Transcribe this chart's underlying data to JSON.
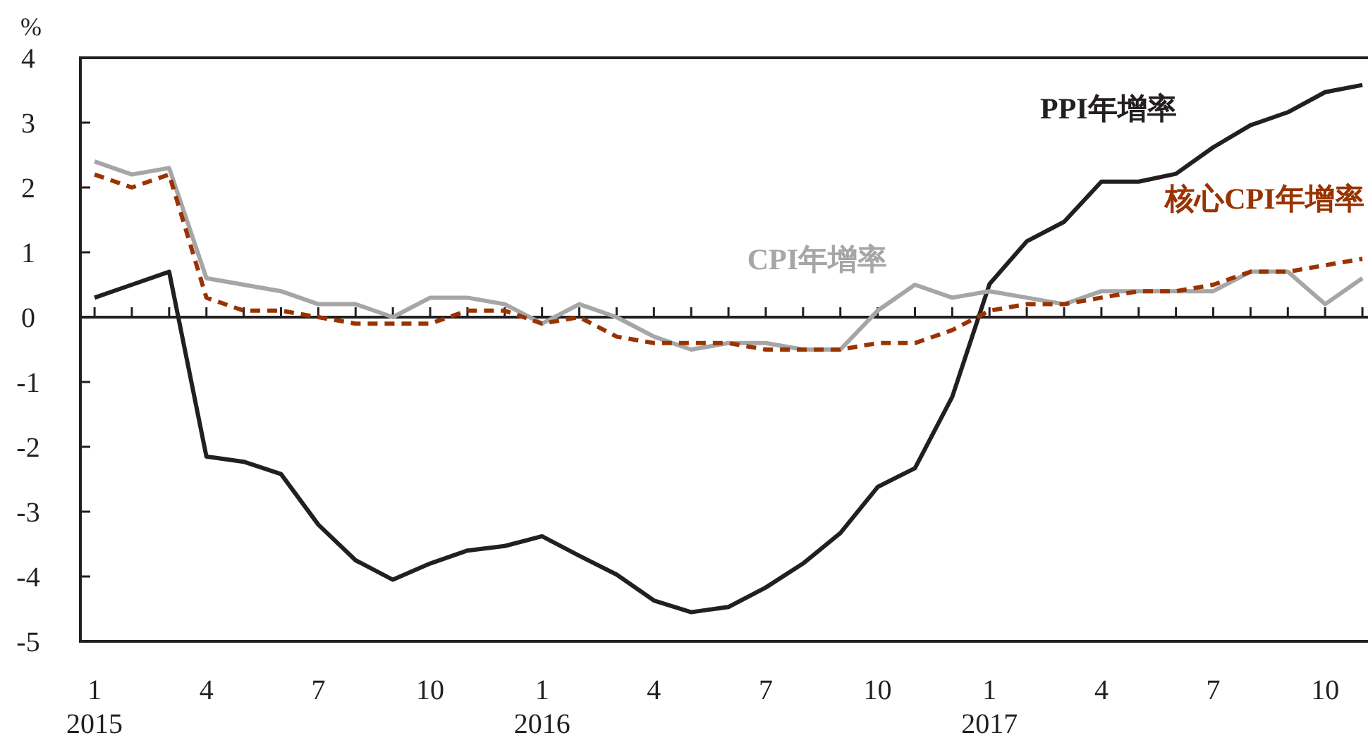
{
  "chart_data": {
    "type": "line",
    "ylabel": "%",
    "categories": [
      "1\n2015",
      null,
      null,
      "4",
      null,
      null,
      "7",
      null,
      null,
      "10",
      null,
      null,
      "1\n2016",
      null,
      null,
      "4",
      null,
      null,
      "7",
      null,
      null,
      "10",
      null,
      null,
      "1\n2017",
      null,
      null,
      "4",
      null,
      null,
      "7",
      null,
      null,
      "10",
      null
    ],
    "ylim": [
      -5,
      4
    ],
    "yticks": [
      -5,
      -4,
      -3,
      -2,
      -1,
      0,
      1,
      2,
      3,
      4
    ],
    "legend": false,
    "series": [
      {
        "name": "PPI年增率",
        "color": "#231f20",
        "line_style": "solid",
        "values": [
          0.3,
          0.5,
          0.7,
          -2.15,
          -2.23,
          -2.42,
          -3.2,
          -3.75,
          -4.05,
          -3.8,
          -3.6,
          -3.53,
          -3.38,
          -3.68,
          -3.97,
          -4.37,
          -4.55,
          -4.47,
          -4.17,
          -3.8,
          -3.33,
          -2.62,
          -2.33,
          -1.23,
          0.51,
          1.17,
          1.47,
          2.09,
          2.09,
          2.21,
          2.62,
          2.96,
          3.16,
          3.47,
          3.58
        ]
      },
      {
        "name": "CPI年增率",
        "color": "#a6a6a6",
        "line_style": "solid",
        "values": [
          2.4,
          2.2,
          2.3,
          0.6,
          0.5,
          0.4,
          0.2,
          0.2,
          0.0,
          0.3,
          0.3,
          0.2,
          -0.1,
          0.2,
          0.0,
          -0.3,
          -0.5,
          -0.4,
          -0.4,
          -0.5,
          -0.5,
          0.1,
          0.5,
          0.3,
          0.4,
          0.3,
          0.2,
          0.4,
          0.4,
          0.4,
          0.4,
          0.7,
          0.7,
          0.2,
          0.6
        ]
      },
      {
        "name": "核心CPI年增率",
        "color": "#993300",
        "line_style": "dashed",
        "values": [
          2.2,
          2.0,
          2.2,
          0.3,
          0.1,
          0.1,
          0.0,
          -0.1,
          -0.1,
          -0.1,
          0.1,
          0.1,
          -0.1,
          0.0,
          -0.3,
          -0.4,
          -0.4,
          -0.4,
          -0.5,
          -0.5,
          -0.5,
          -0.4,
          -0.4,
          -0.2,
          0.1,
          0.2,
          0.2,
          0.3,
          0.4,
          0.4,
          0.5,
          0.7,
          0.7,
          0.8,
          0.9
        ]
      }
    ]
  }
}
